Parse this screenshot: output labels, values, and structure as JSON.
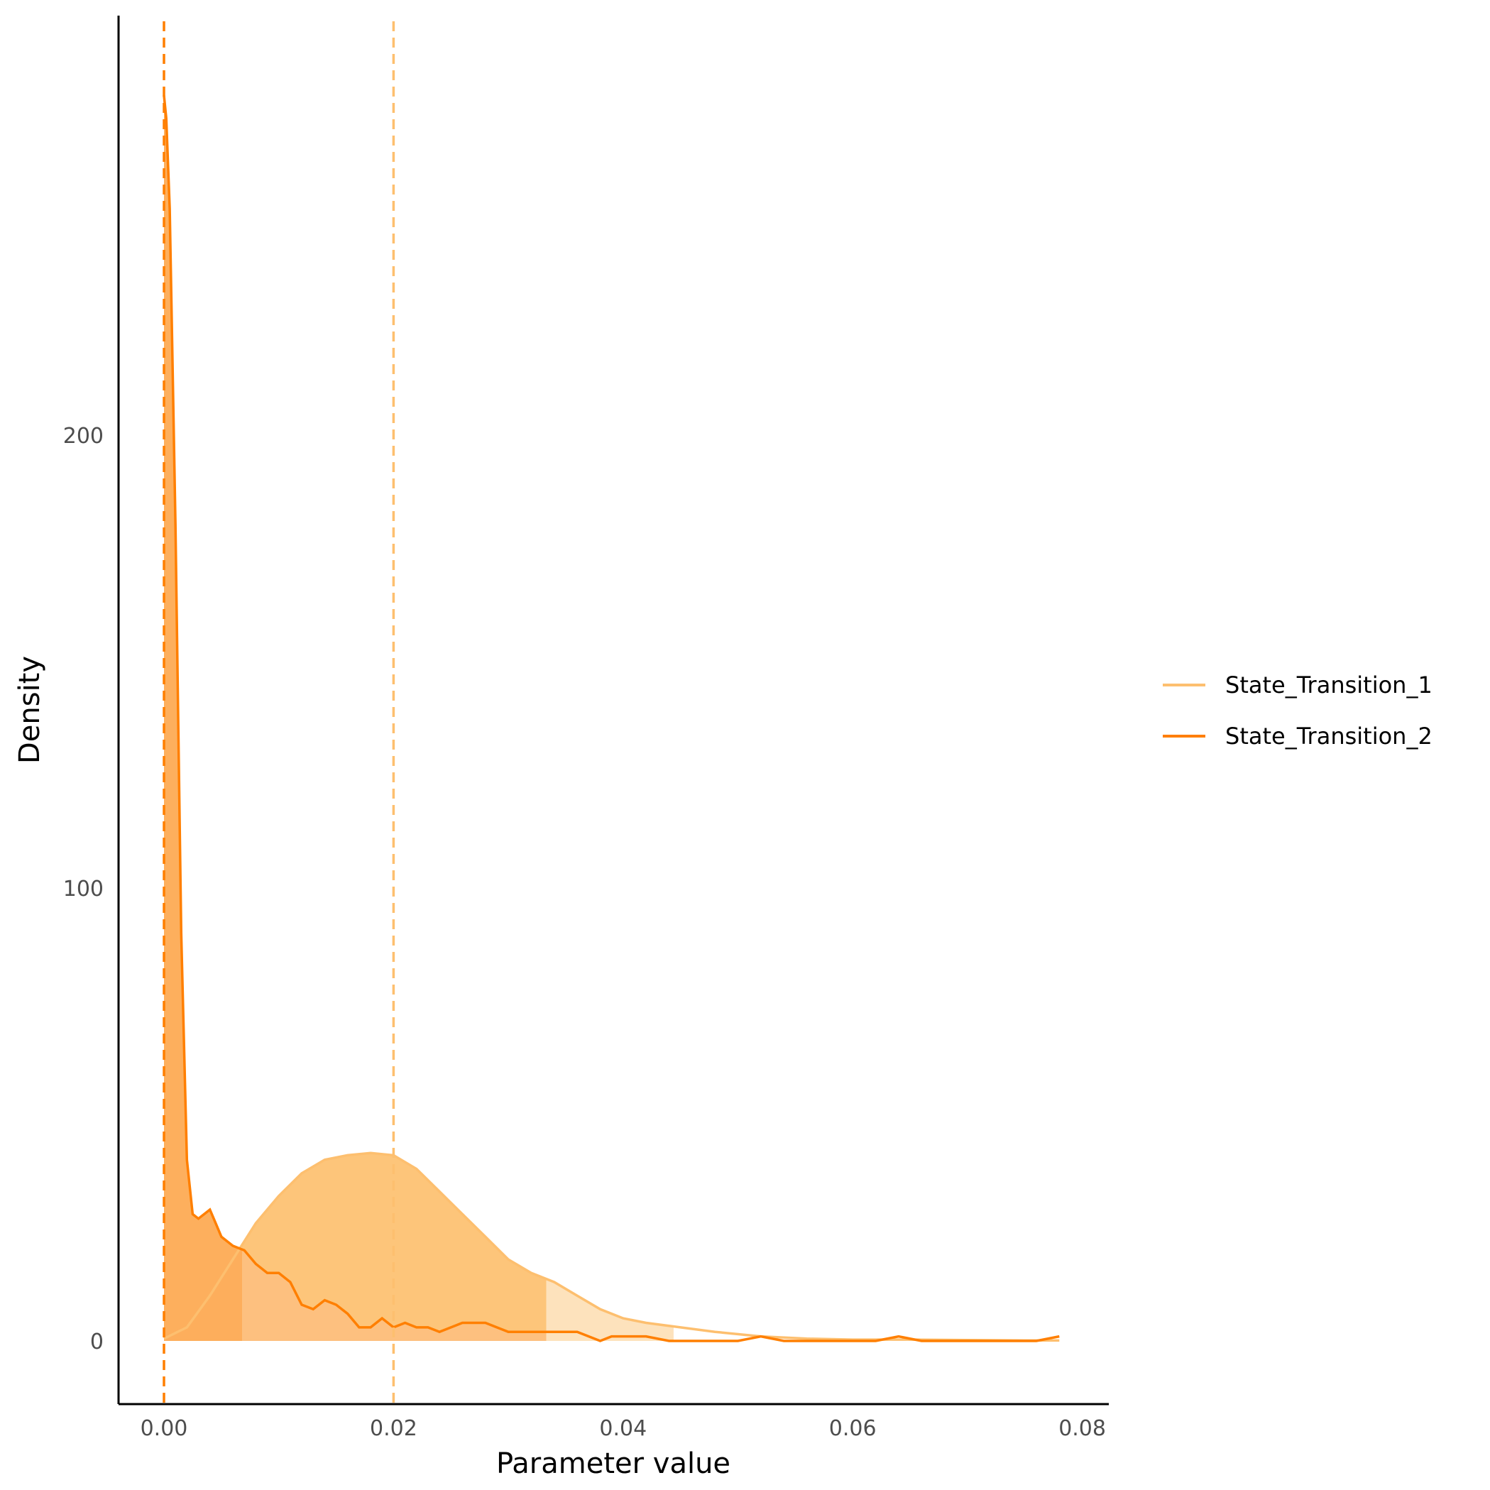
{
  "chart_data": {
    "type": "area",
    "xlabel": "Parameter value",
    "ylabel": "Density",
    "xlim": [
      -0.004,
      0.082
    ],
    "ylim": [
      -14,
      280
    ],
    "x_ticks": [
      0.0,
      0.02,
      0.04,
      0.06,
      0.08
    ],
    "x_tick_labels": [
      "0.00",
      "0.02",
      "0.04",
      "0.06",
      "0.08"
    ],
    "y_ticks": [
      0,
      100,
      200
    ],
    "y_tick_labels": [
      "0",
      "100",
      "200"
    ],
    "grid": false,
    "legend": {
      "position": "right",
      "entries": [
        "State_Transition_1",
        "State_Transition_2"
      ]
    },
    "series": [
      {
        "name": "State_Transition_1",
        "color": "#FDBF6F",
        "fill_light": "#FDDFB5",
        "fill_dark": "#FDBF6F",
        "median": 0.02,
        "interval_inner": [
          0.0068,
          0.0333
        ],
        "interval_outer": [
          0.0,
          0.0444
        ],
        "x": [
          0.0,
          0.002,
          0.004,
          0.006,
          0.008,
          0.01,
          0.012,
          0.014,
          0.016,
          0.018,
          0.02,
          0.022,
          0.024,
          0.026,
          0.028,
          0.03,
          0.032,
          0.034,
          0.036,
          0.038,
          0.04,
          0.042,
          0.045,
          0.048,
          0.052,
          0.056,
          0.06,
          0.065,
          0.07,
          0.075,
          0.078
        ],
        "y": [
          0.5,
          3,
          10,
          18,
          26,
          32,
          37,
          40,
          41,
          41.5,
          41,
          38,
          33,
          28,
          23,
          18,
          15,
          13,
          10,
          7,
          5,
          4,
          3,
          2,
          1,
          0.5,
          0.3,
          0.3,
          0.2,
          0.1,
          0.1
        ]
      },
      {
        "name": "State_Transition_2",
        "color": "#FF7F00",
        "fill_light": "#FDBF80",
        "fill_dark": "#FDAA55",
        "median": 0.0,
        "interval_inner": [
          0.0,
          0.0068
        ],
        "interval_outer": [
          0.0,
          0.0333
        ],
        "x": [
          0.0,
          0.0002,
          0.0005,
          0.001,
          0.0015,
          0.002,
          0.0025,
          0.003,
          0.0035,
          0.004,
          0.0045,
          0.005,
          0.006,
          0.007,
          0.008,
          0.009,
          0.01,
          0.011,
          0.012,
          0.013,
          0.014,
          0.015,
          0.016,
          0.017,
          0.018,
          0.019,
          0.02,
          0.021,
          0.022,
          0.023,
          0.024,
          0.025,
          0.026,
          0.027,
          0.028,
          0.029,
          0.03,
          0.031,
          0.032,
          0.033,
          0.034,
          0.035,
          0.036,
          0.037,
          0.038,
          0.039,
          0.04,
          0.042,
          0.044,
          0.046,
          0.048,
          0.05,
          0.052,
          0.054,
          0.056,
          0.058,
          0.06,
          0.062,
          0.064,
          0.066,
          0.068,
          0.07,
          0.072,
          0.074,
          0.076,
          0.078
        ],
        "y": [
          275,
          270,
          250,
          180,
          90,
          40,
          28,
          27,
          28,
          29,
          26,
          23,
          21,
          20,
          17,
          15,
          15,
          13,
          8,
          7,
          9,
          8,
          6,
          3,
          3,
          5,
          3,
          4,
          3,
          3,
          2,
          3,
          4,
          4,
          4,
          3,
          2,
          2,
          2,
          2,
          2,
          2,
          2,
          1,
          0,
          1,
          1,
          1,
          0,
          0,
          0,
          0,
          1,
          0,
          0,
          0,
          0,
          0,
          1,
          0,
          0,
          0,
          0,
          0,
          0,
          1
        ]
      }
    ]
  }
}
